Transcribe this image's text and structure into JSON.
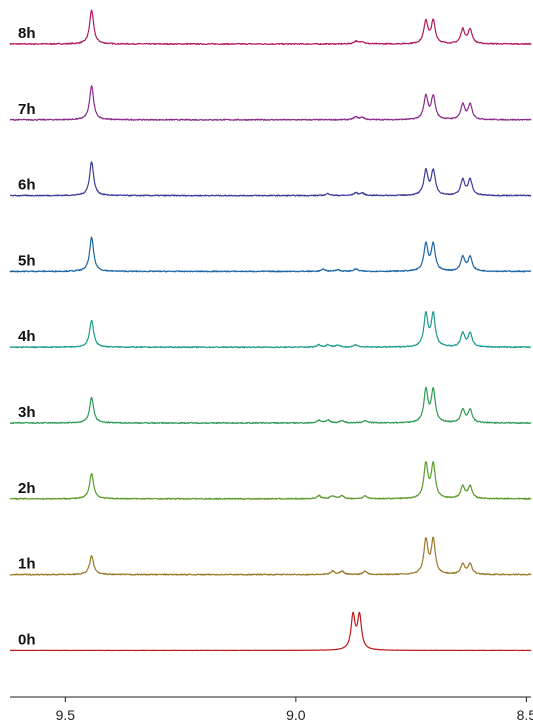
{
  "chart_data": {
    "type": "line",
    "title": "",
    "xlabel": "",
    "ylabel": "",
    "x_axis": {
      "xlim": [
        9.62,
        8.49
      ],
      "reversed": true,
      "ticks": [
        9.5,
        9.0,
        8.5
      ],
      "tick_labels": [
        "9.5",
        "9.0",
        "8.5"
      ]
    },
    "y_axis": {
      "visible": false
    },
    "grid": false,
    "legend": "none",
    "series": [
      {
        "name": "8h",
        "color": "#b2185e",
        "peaks": [
          {
            "x": 9.443,
            "h": 1.0
          },
          {
            "x": 8.87,
            "h": 0.08
          },
          {
            "x": 8.856,
            "h": 0.07
          },
          {
            "x": 8.718,
            "h": 0.66
          },
          {
            "x": 8.702,
            "h": 0.66
          },
          {
            "x": 8.638,
            "h": 0.42
          },
          {
            "x": 8.622,
            "h": 0.42
          }
        ]
      },
      {
        "name": "7h",
        "color": "#8a2a8a",
        "peaks": [
          {
            "x": 9.443,
            "h": 1.0
          },
          {
            "x": 8.87,
            "h": 0.08
          },
          {
            "x": 8.856,
            "h": 0.07
          },
          {
            "x": 8.718,
            "h": 0.68
          },
          {
            "x": 8.702,
            "h": 0.68
          },
          {
            "x": 8.638,
            "h": 0.44
          },
          {
            "x": 8.622,
            "h": 0.44
          }
        ]
      },
      {
        "name": "6h",
        "color": "#3d3a9a",
        "peaks": [
          {
            "x": 9.443,
            "h": 1.0
          },
          {
            "x": 8.93,
            "h": 0.06
          },
          {
            "x": 8.87,
            "h": 0.08
          },
          {
            "x": 8.856,
            "h": 0.07
          },
          {
            "x": 8.718,
            "h": 0.72
          },
          {
            "x": 8.702,
            "h": 0.72
          },
          {
            "x": 8.638,
            "h": 0.46
          },
          {
            "x": 8.622,
            "h": 0.46
          }
        ]
      },
      {
        "name": "5h",
        "color": "#1b65a6",
        "peaks": [
          {
            "x": 9.443,
            "h": 1.0
          },
          {
            "x": 8.94,
            "h": 0.06
          },
          {
            "x": 8.91,
            "h": 0.05
          },
          {
            "x": 8.87,
            "h": 0.07
          },
          {
            "x": 8.718,
            "h": 0.78
          },
          {
            "x": 8.702,
            "h": 0.78
          },
          {
            "x": 8.638,
            "h": 0.42
          },
          {
            "x": 8.622,
            "h": 0.42
          }
        ]
      },
      {
        "name": "4h",
        "color": "#1a9a8a",
        "peaks": [
          {
            "x": 9.443,
            "h": 0.8
          },
          {
            "x": 8.95,
            "h": 0.07
          },
          {
            "x": 8.93,
            "h": 0.07
          },
          {
            "x": 8.91,
            "h": 0.06
          },
          {
            "x": 8.87,
            "h": 0.07
          },
          {
            "x": 8.718,
            "h": 0.95
          },
          {
            "x": 8.702,
            "h": 0.95
          },
          {
            "x": 8.638,
            "h": 0.4
          },
          {
            "x": 8.622,
            "h": 0.4
          }
        ]
      },
      {
        "name": "3h",
        "color": "#2e9a55",
        "peaks": [
          {
            "x": 9.443,
            "h": 0.75
          },
          {
            "x": 8.95,
            "h": 0.08
          },
          {
            "x": 8.93,
            "h": 0.08
          },
          {
            "x": 8.9,
            "h": 0.07
          },
          {
            "x": 8.85,
            "h": 0.07
          },
          {
            "x": 8.718,
            "h": 0.95
          },
          {
            "x": 8.702,
            "h": 0.95
          },
          {
            "x": 8.638,
            "h": 0.38
          },
          {
            "x": 8.622,
            "h": 0.38
          }
        ]
      },
      {
        "name": "2h",
        "color": "#5a9a2a",
        "peaks": [
          {
            "x": 9.443,
            "h": 0.75
          },
          {
            "x": 8.95,
            "h": 0.09
          },
          {
            "x": 8.92,
            "h": 0.09
          },
          {
            "x": 8.9,
            "h": 0.08
          },
          {
            "x": 8.85,
            "h": 0.08
          },
          {
            "x": 8.718,
            "h": 1.0
          },
          {
            "x": 8.702,
            "h": 1.0
          },
          {
            "x": 8.638,
            "h": 0.36
          },
          {
            "x": 8.622,
            "h": 0.36
          }
        ]
      },
      {
        "name": "1h",
        "color": "#9a7a2a",
        "peaks": [
          {
            "x": 9.443,
            "h": 0.55
          },
          {
            "x": 8.92,
            "h": 0.1
          },
          {
            "x": 8.9,
            "h": 0.1
          },
          {
            "x": 8.85,
            "h": 0.1
          },
          {
            "x": 8.718,
            "h": 1.0
          },
          {
            "x": 8.702,
            "h": 1.0
          },
          {
            "x": 8.638,
            "h": 0.3
          },
          {
            "x": 8.622,
            "h": 0.3
          }
        ]
      },
      {
        "name": "0h",
        "color": "#c01818",
        "peaks": [
          {
            "x": 8.876,
            "h": 1.0
          },
          {
            "x": 8.862,
            "h": 1.0
          }
        ]
      }
    ]
  }
}
